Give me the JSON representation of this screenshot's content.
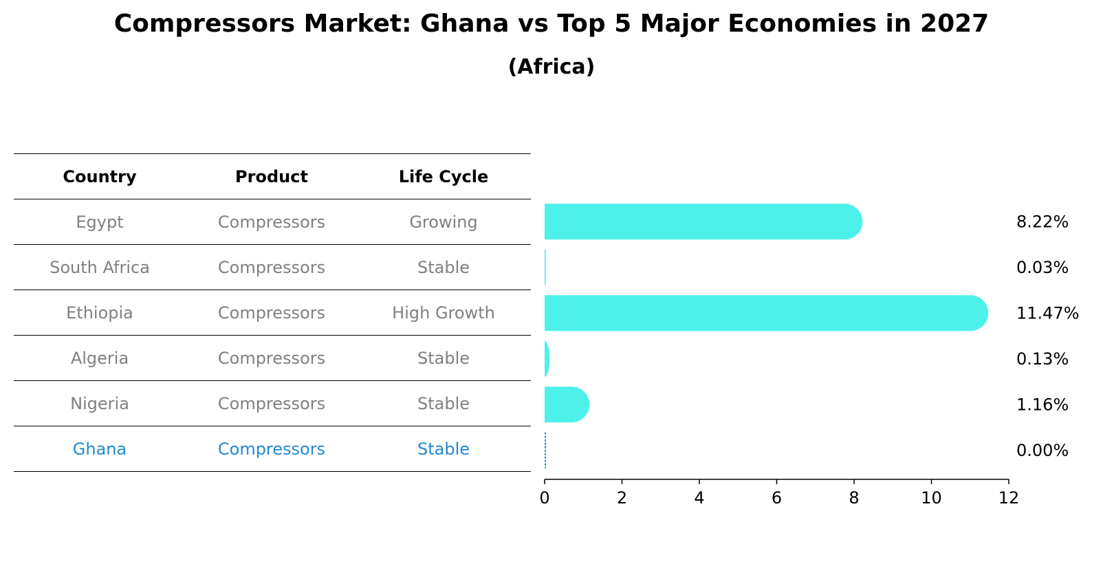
{
  "title": "Compressors Market: Ghana vs Top 5 Major Economies in 2027",
  "subtitle": "(Africa)",
  "table": {
    "columns": [
      "Country",
      "Product",
      "Life Cycle"
    ],
    "rows": [
      {
        "country": "Egypt",
        "product": "Compressors",
        "life_cycle": "Growing"
      },
      {
        "country": "South Africa",
        "product": "Compressors",
        "life_cycle": "Stable"
      },
      {
        "country": "Ethiopia",
        "product": "Compressors",
        "life_cycle": "High Growth"
      },
      {
        "country": "Algeria",
        "product": "Compressors",
        "life_cycle": "Stable"
      },
      {
        "country": "Nigeria",
        "product": "Compressors",
        "life_cycle": "Stable"
      },
      {
        "country": "Ghana",
        "product": "Compressors",
        "life_cycle": "Stable"
      }
    ],
    "highlight_row": "Ghana"
  },
  "chart_data": {
    "type": "bar",
    "orientation": "horizontal",
    "categories": [
      "Egypt",
      "South Africa",
      "Ethiopia",
      "Algeria",
      "Nigeria",
      "Ghana"
    ],
    "values": [
      8.22,
      0.03,
      11.47,
      0.13,
      1.16,
      0.0
    ],
    "value_labels": [
      "8.22%",
      "0.03%",
      "11.47%",
      "0.13%",
      "1.16%",
      "0.00%"
    ],
    "xlim": [
      0,
      12
    ],
    "xticks": [
      0,
      2,
      4,
      6,
      8,
      10,
      12
    ],
    "bar_color": "#4ef0ea",
    "highlight_color": "#1f8ad2",
    "grid": false
  }
}
